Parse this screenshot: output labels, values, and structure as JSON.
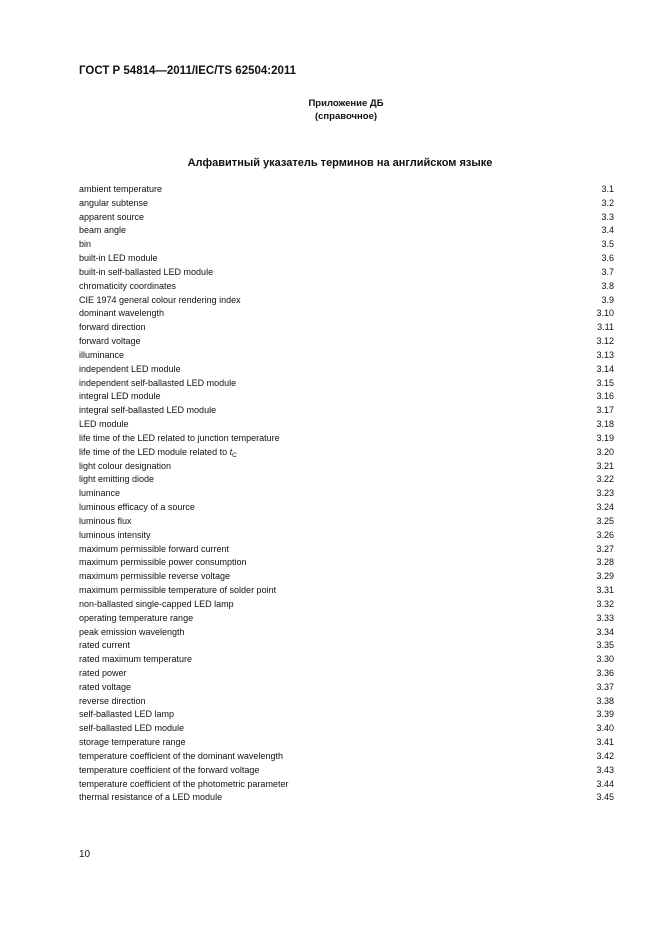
{
  "header": {
    "standard": "ГОСТ Р 54814—2011/IEC/TS 62504:2011"
  },
  "annex": {
    "title": "Приложение ДБ",
    "subtitle": "(справочное)"
  },
  "index_title": "Алфавитный указатель терминов на английском языке",
  "entries": [
    {
      "term": "ambient temperature",
      "ref": "3.1"
    },
    {
      "term": "angular subtense",
      "ref": "3.2"
    },
    {
      "term": "apparent source",
      "ref": "3.3"
    },
    {
      "term": "beam angle",
      "ref": "3.4"
    },
    {
      "term": "bin",
      "ref": "3.5"
    },
    {
      "term": "built-in LED module",
      "ref": "3.6"
    },
    {
      "term": "built-in self-ballasted LED module",
      "ref": "3.7"
    },
    {
      "term": "chromaticity coordinates",
      "ref": "3.8"
    },
    {
      "term": "CIE 1974 general colour rendering index",
      "ref": "3.9"
    },
    {
      "term": "dominant wavelength",
      "ref": "3.10"
    },
    {
      "term": "forward direction",
      "ref": "3.11"
    },
    {
      "term": "forward voltage",
      "ref": "3.12"
    },
    {
      "term": "illuminance",
      "ref": "3.13"
    },
    {
      "term": "independent LED module",
      "ref": "3.14"
    },
    {
      "term": "independent self-ballasted LED module",
      "ref": "3.15"
    },
    {
      "term": "integral LED module",
      "ref": "3.16"
    },
    {
      "term": "integral self-ballasted LED module",
      "ref": "3.17"
    },
    {
      "term": "LED module",
      "ref": "3.18"
    },
    {
      "term": "life time of the LED related to junction temperature",
      "ref": "3.19"
    },
    {
      "term": "life time of the LED module related to ",
      "italic": "t",
      "sub": "C",
      "ref": "3.20"
    },
    {
      "term": "light colour designation",
      "ref": "3.21"
    },
    {
      "term": "light emitting diode",
      "ref": "3.22"
    },
    {
      "term": "luminance",
      "ref": "3.23"
    },
    {
      "term": "luminous efficacy of a source",
      "ref": "3.24"
    },
    {
      "term": "luminous flux",
      "ref": "3.25"
    },
    {
      "term": "luminous intensity",
      "ref": "3.26"
    },
    {
      "term": "maximum permissible forward current",
      "ref": "3.27"
    },
    {
      "term": "maximum permissible power consumption",
      "ref": "3.28"
    },
    {
      "term": "maximum permissible reverse voltage",
      "ref": "3.29"
    },
    {
      "term": "maximum permissible temperature of solder point",
      "ref": "3.31"
    },
    {
      "term": "non-ballasted single-capped LED lamp",
      "ref": "3.32"
    },
    {
      "term": "operating temperature range",
      "ref": "3.33"
    },
    {
      "term": "peak emission wavelength",
      "ref": "3.34"
    },
    {
      "term": "rated current",
      "ref": "3.35"
    },
    {
      "term": "rated maximum temperature",
      "ref": "3.30"
    },
    {
      "term": "rated power",
      "ref": "3.36"
    },
    {
      "term": "rated voltage",
      "ref": "3.37"
    },
    {
      "term": "reverse direction",
      "ref": "3.38"
    },
    {
      "term": "self-ballasted LED lamp",
      "ref": "3.39"
    },
    {
      "term": "self-ballasted LED module",
      "ref": "3.40"
    },
    {
      "term": "storage temperature range",
      "ref": "3.41"
    },
    {
      "term": "temperature coefficient of the dominant wavelength",
      "ref": "3.42"
    },
    {
      "term": "temperature coefficient of the forward voltage",
      "ref": "3.43"
    },
    {
      "term": "temperature coefficient of the photometric parameter",
      "ref": "3.44"
    },
    {
      "term": "thermal resistance of a LED module",
      "ref": "3.45"
    }
  ],
  "page_number": "10"
}
